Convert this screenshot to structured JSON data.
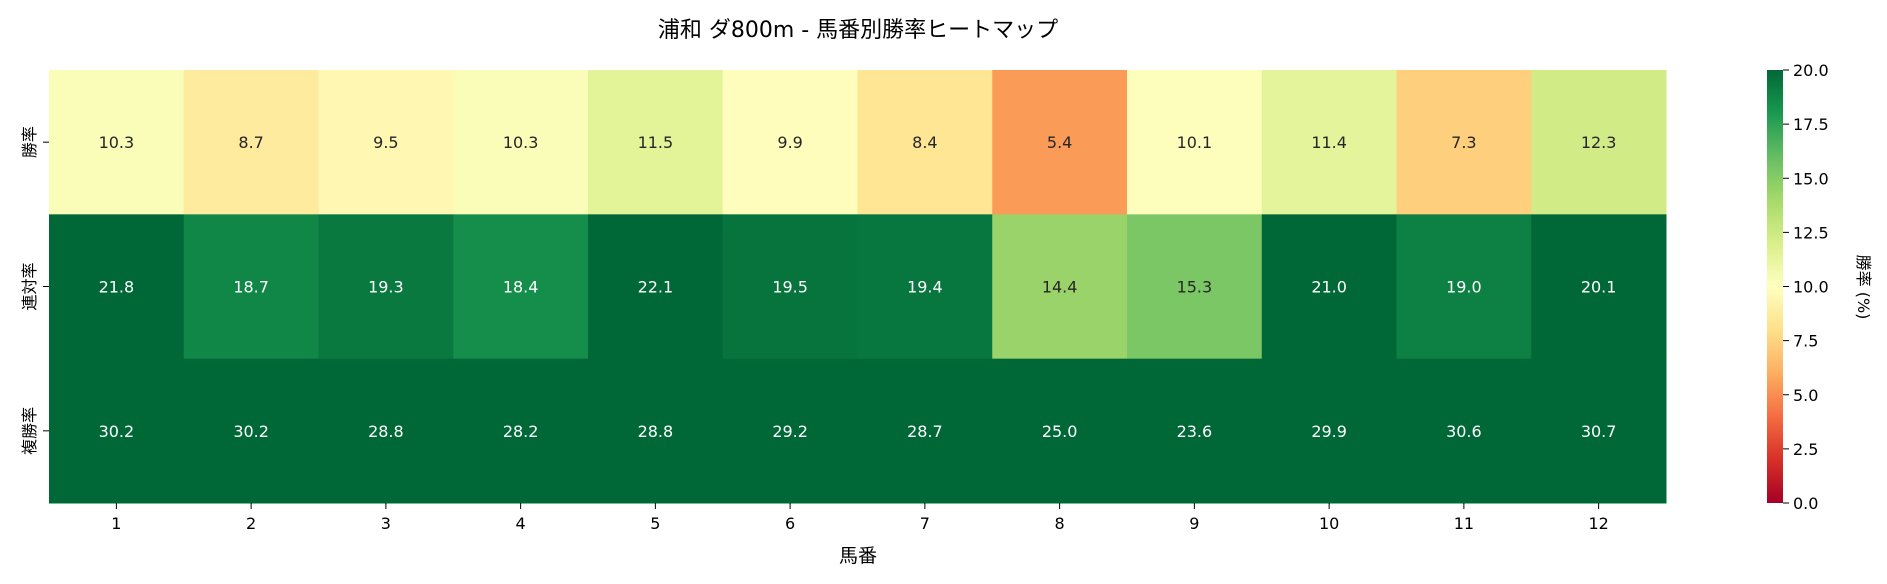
{
  "chart_data": {
    "type": "heatmap",
    "title": "浦和 ダ800m - 馬番別勝率ヒートマップ",
    "xlabel": "馬番",
    "ylabel": "",
    "x_categories": [
      "1",
      "2",
      "3",
      "4",
      "5",
      "6",
      "7",
      "8",
      "9",
      "10",
      "11",
      "12"
    ],
    "y_categories": [
      "勝率",
      "連対率",
      "複勝率"
    ],
    "values": [
      [
        10.3,
        8.7,
        9.5,
        10.3,
        11.5,
        9.9,
        8.4,
        5.4,
        10.1,
        11.4,
        7.3,
        12.3
      ],
      [
        21.8,
        18.7,
        19.3,
        18.4,
        22.1,
        19.5,
        19.4,
        14.4,
        15.3,
        21.0,
        19.0,
        20.1
      ],
      [
        30.2,
        30.2,
        28.8,
        28.2,
        28.8,
        29.2,
        28.7,
        25.0,
        23.6,
        29.9,
        30.6,
        30.7
      ]
    ],
    "annotations_format": "0.1f",
    "colormap": "RdYlGn",
    "vmin": 0,
    "vmax": 20,
    "colorbar": {
      "label": "勝率 (%)",
      "ticks": [
        "0.0",
        "2.5",
        "5.0",
        "7.5",
        "10.0",
        "12.5",
        "15.0",
        "17.5",
        "20.0"
      ]
    }
  }
}
